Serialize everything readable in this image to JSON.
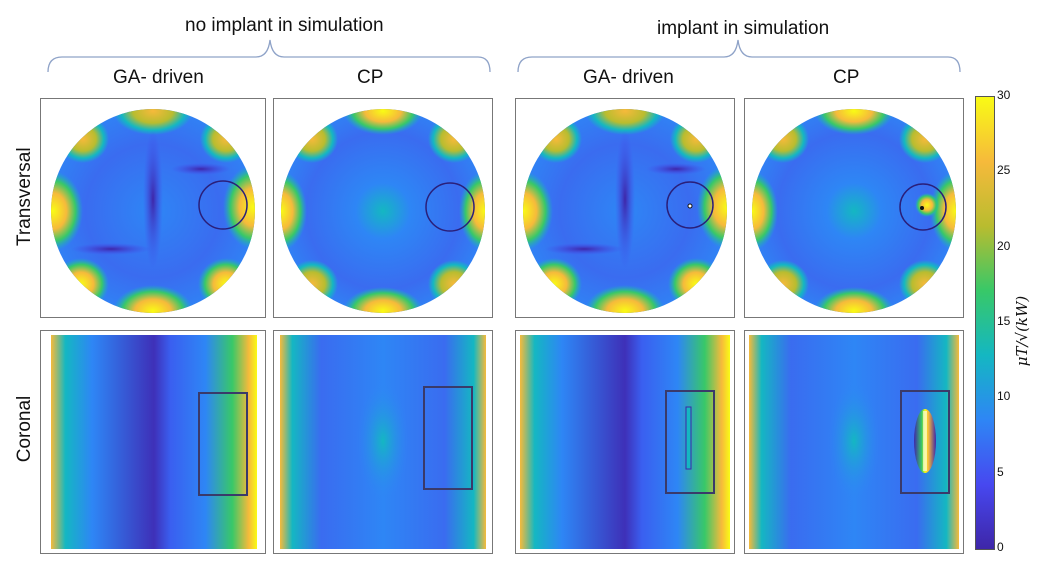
{
  "groups": {
    "no_implant": "no implant in simulation",
    "implant": "implant in simulation"
  },
  "columns": [
    "GA- driven",
    "CP",
    "GA- driven",
    "CP"
  ],
  "rows": {
    "transversal": "Transversal",
    "coronal": "Coronal"
  },
  "colorbar": {
    "label": "μT/√(kW)",
    "ticks": [
      "30",
      "25",
      "20",
      "15",
      "10",
      "5",
      "0"
    ],
    "min": 0,
    "max": 30,
    "colormap": [
      "#3e26a8",
      "#4748f0",
      "#2e86f5",
      "#14b7c2",
      "#38c868",
      "#b9bc2f",
      "#f6ba3b",
      "#f9fb15"
    ]
  }
}
